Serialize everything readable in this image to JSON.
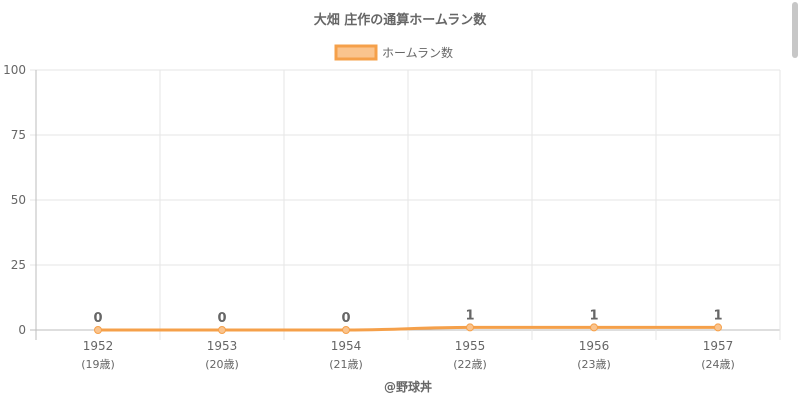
{
  "chart_data": {
    "type": "line",
    "title": "大畑 庄作の通算ホームラン数",
    "categories": [
      "1952",
      "1953",
      "1954",
      "1955",
      "1956",
      "1957"
    ],
    "category_sublabels": [
      "(19歳)",
      "(20歳)",
      "(21歳)",
      "(22歳)",
      "(23歳)",
      "(24歳)"
    ],
    "series": [
      {
        "name": "ホームラン数",
        "values": [
          0,
          0,
          0,
          1,
          1,
          1
        ],
        "color": "#f5a04a",
        "fill": "#fac48e"
      }
    ],
    "data_labels": [
      "0",
      "0",
      "0",
      "1",
      "1",
      "1"
    ],
    "ylim": [
      0,
      100
    ],
    "yticks": [
      "0",
      "25",
      "50",
      "75",
      "100"
    ],
    "grid": true,
    "legend_position": "top",
    "credit": "@野球丼"
  }
}
